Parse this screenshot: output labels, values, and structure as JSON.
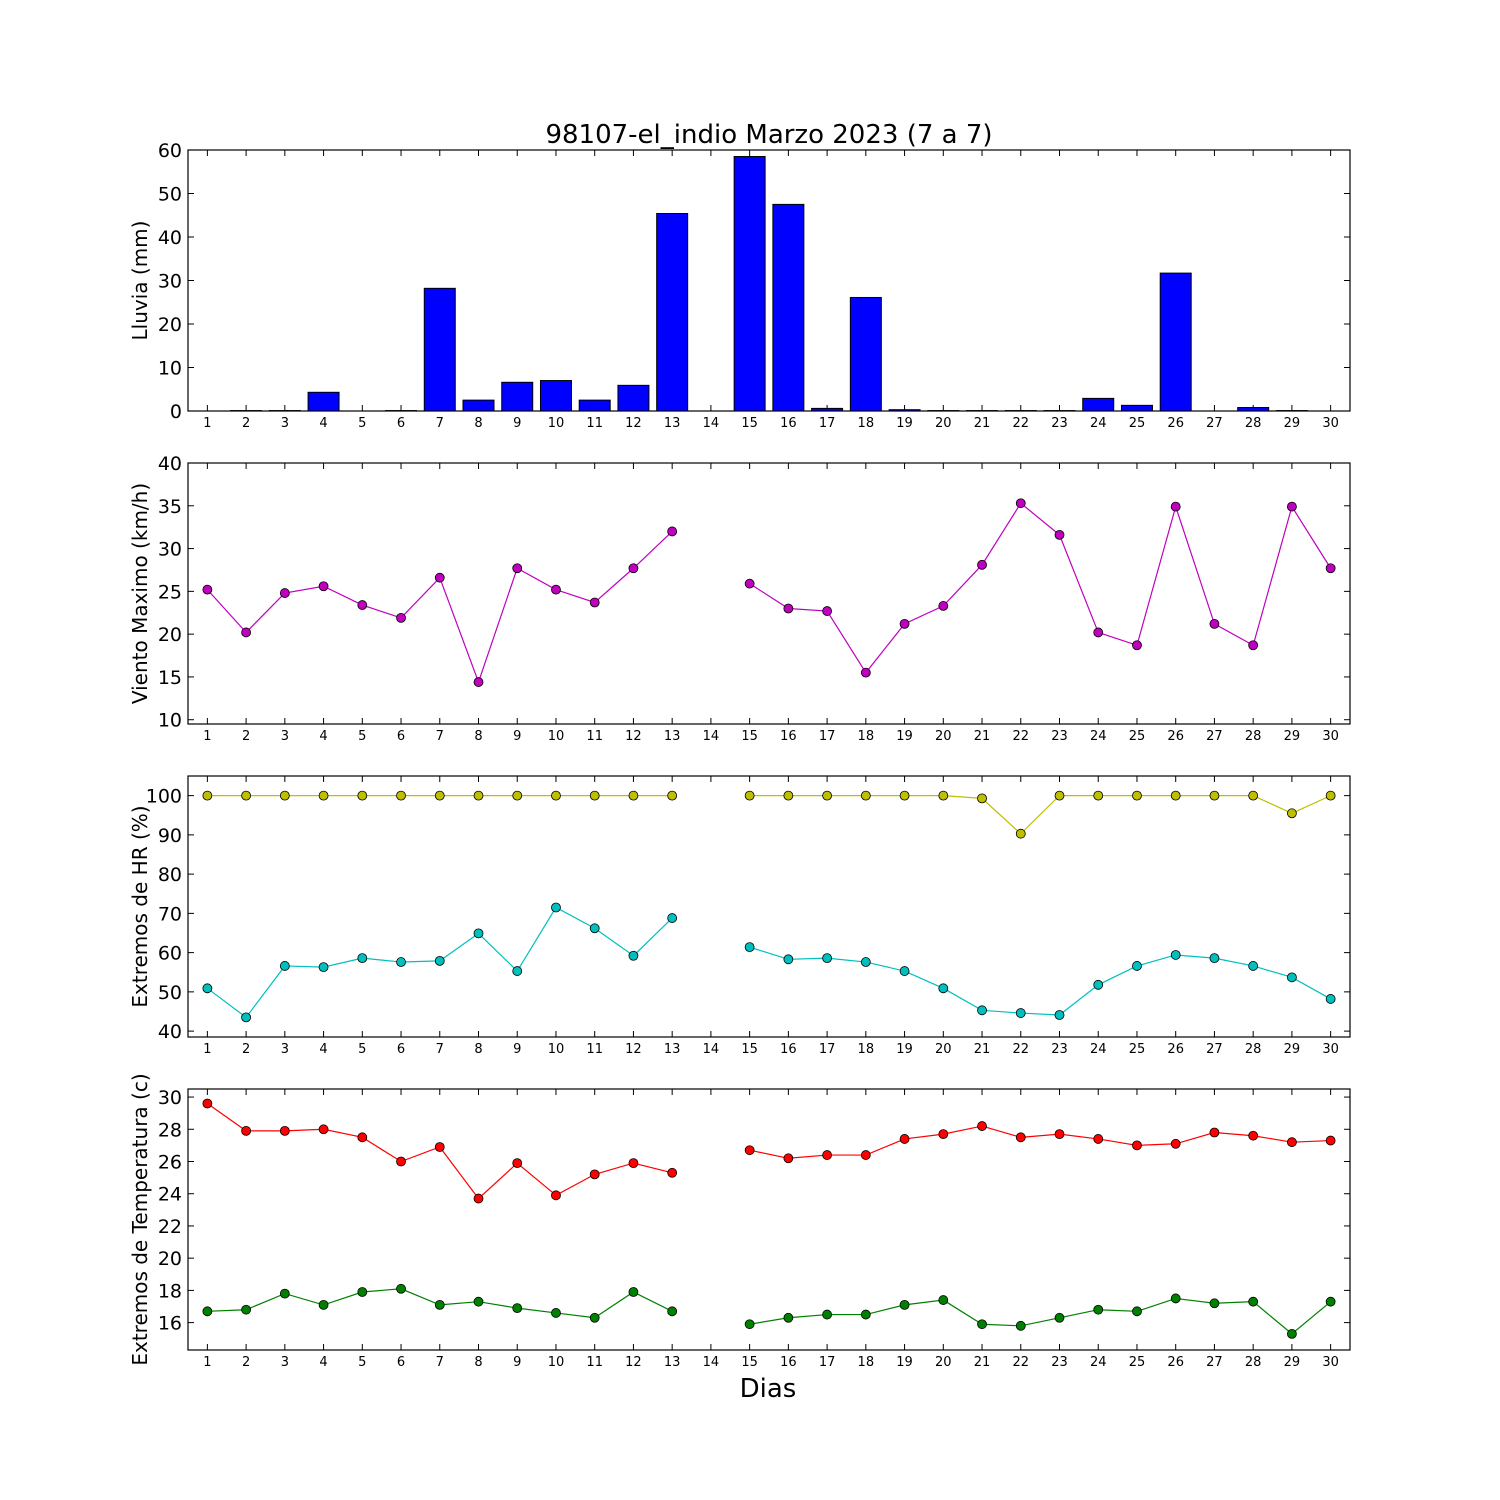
{
  "figure": {
    "title": "98107-el_indio Marzo 2023  (7 a 7)",
    "xlabel": "Dias"
  },
  "chart_data": [
    {
      "type": "bar",
      "ylabel": "Lluvia (mm)",
      "ylim": [
        0,
        60
      ],
      "yticks": [
        0,
        10,
        20,
        30,
        40,
        50,
        60
      ],
      "categories": [
        "1",
        "2",
        "3",
        "4",
        "5",
        "6",
        "7",
        "8",
        "9",
        "10",
        "11",
        "12",
        "13",
        "14",
        "15",
        "16",
        "17",
        "18",
        "19",
        "20",
        "21",
        "22",
        "23",
        "24",
        "25",
        "26",
        "27",
        "28",
        "29",
        "30"
      ],
      "series": [
        {
          "color": "#0000ff",
          "values": [
            0,
            0.1,
            0.1,
            4.3,
            0,
            0.1,
            28.2,
            2.5,
            6.6,
            7.0,
            2.5,
            5.9,
            45.4,
            null,
            58.5,
            47.5,
            0.6,
            26.1,
            0.3,
            0.1,
            0.1,
            0.1,
            0.1,
            2.9,
            1.3,
            31.7,
            0,
            0.8,
            0.1,
            0
          ]
        }
      ],
      "grid": false
    },
    {
      "type": "line",
      "ylabel": "Viento Maximo (km/h)",
      "ylim": [
        9.5,
        40
      ],
      "yticks": [
        10,
        15,
        20,
        25,
        30,
        35,
        40
      ],
      "x": [
        1,
        2,
        3,
        4,
        5,
        6,
        7,
        8,
        9,
        10,
        11,
        12,
        13,
        14,
        15,
        16,
        17,
        18,
        19,
        20,
        21,
        22,
        23,
        24,
        25,
        26,
        27,
        28,
        29,
        30
      ],
      "series": [
        {
          "color": "#bf00bf",
          "values": [
            25.2,
            20.2,
            24.8,
            25.6,
            23.4,
            21.9,
            26.6,
            14.4,
            27.7,
            25.2,
            23.7,
            27.7,
            32.0,
            null,
            25.9,
            23.0,
            22.7,
            15.5,
            21.2,
            23.3,
            28.1,
            35.3,
            31.6,
            20.2,
            18.7,
            34.9,
            21.2,
            18.7,
            34.9,
            27.7
          ]
        }
      ],
      "grid": false
    },
    {
      "type": "line",
      "ylabel": "Extremos de HR (%)",
      "ylim": [
        38.5,
        105
      ],
      "yticks": [
        40,
        50,
        60,
        70,
        80,
        90,
        100
      ],
      "x": [
        1,
        2,
        3,
        4,
        5,
        6,
        7,
        8,
        9,
        10,
        11,
        12,
        13,
        14,
        15,
        16,
        17,
        18,
        19,
        20,
        21,
        22,
        23,
        24,
        25,
        26,
        27,
        28,
        29,
        30
      ],
      "series": [
        {
          "color": "#bfbf00",
          "values": [
            100,
            100,
            100,
            100,
            100,
            100,
            100,
            100,
            100,
            100,
            100,
            100,
            100,
            null,
            100,
            100,
            100,
            100,
            100,
            100,
            99.3,
            90.3,
            100,
            100,
            100,
            100,
            100,
            100,
            95.5,
            100
          ]
        },
        {
          "color": "#00bfbf",
          "values": [
            50.9,
            43.5,
            56.6,
            56.3,
            58.6,
            57.6,
            57.9,
            64.9,
            55.3,
            71.5,
            66.2,
            59.2,
            68.8,
            null,
            61.4,
            58.3,
            58.6,
            57.6,
            55.3,
            50.9,
            45.3,
            44.6,
            44.1,
            51.8,
            56.6,
            59.4,
            58.6,
            56.6,
            53.7,
            48.2
          ]
        }
      ],
      "grid": false
    },
    {
      "type": "line",
      "ylabel": "Extremos de Temperatura (c)",
      "ylim": [
        14.3,
        30.5
      ],
      "yticks": [
        16,
        18,
        20,
        22,
        24,
        26,
        28,
        30
      ],
      "x": [
        1,
        2,
        3,
        4,
        5,
        6,
        7,
        8,
        9,
        10,
        11,
        12,
        13,
        14,
        15,
        16,
        17,
        18,
        19,
        20,
        21,
        22,
        23,
        24,
        25,
        26,
        27,
        28,
        29,
        30
      ],
      "series": [
        {
          "color": "#ff0000",
          "values": [
            29.6,
            27.9,
            27.9,
            28.0,
            27.5,
            26.0,
            26.9,
            23.7,
            25.9,
            23.9,
            25.2,
            25.9,
            25.3,
            null,
            26.7,
            26.2,
            26.4,
            26.4,
            27.4,
            27.7,
            28.2,
            27.5,
            27.7,
            27.4,
            27.0,
            27.1,
            27.8,
            27.6,
            27.2,
            27.3
          ]
        },
        {
          "color": "#008000",
          "values": [
            16.7,
            16.8,
            17.8,
            17.1,
            17.9,
            18.1,
            17.1,
            17.3,
            16.9,
            16.6,
            16.3,
            17.9,
            16.7,
            null,
            15.9,
            16.3,
            16.5,
            16.5,
            17.1,
            17.4,
            15.9,
            15.8,
            16.3,
            16.8,
            16.7,
            17.5,
            17.2,
            17.3,
            15.3,
            17.3
          ]
        }
      ],
      "grid": false
    }
  ]
}
